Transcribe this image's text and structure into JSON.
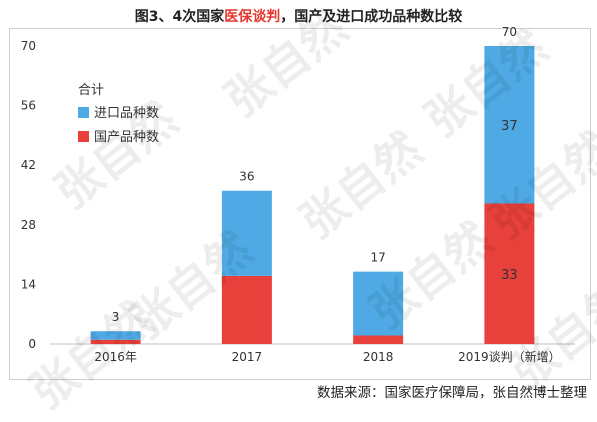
{
  "title": {
    "prefix": "图3、4次国家",
    "highlight": "医保谈判",
    "suffix": "，国产及进口成功品种数比较"
  },
  "source": "数据来源：国家医疗保障局，张自然博士整理",
  "watermark": "张自然",
  "chart_data": {
    "type": "bar",
    "stacked": true,
    "categories": [
      "2016年",
      "2017",
      "2018",
      "2019谈判（新增）"
    ],
    "series": [
      {
        "name": "国产品种数",
        "color": "#e8403a",
        "values": [
          1,
          16,
          2,
          33
        ]
      },
      {
        "name": "进口品种数",
        "color": "#4ea9e4",
        "values": [
          2,
          20,
          15,
          37
        ]
      }
    ],
    "totals_label": "合计",
    "totals": [
      3,
      36,
      17,
      70
    ],
    "inner_labels": [
      {
        "category": 3,
        "series": "进口品种数",
        "text": "37"
      },
      {
        "category": 3,
        "series": "国产品种数",
        "text": "33"
      }
    ],
    "y_ticks": [
      0,
      14,
      28,
      42,
      56,
      70
    ],
    "ylim": [
      0,
      70
    ],
    "legend_position": "left",
    "grid": false
  }
}
